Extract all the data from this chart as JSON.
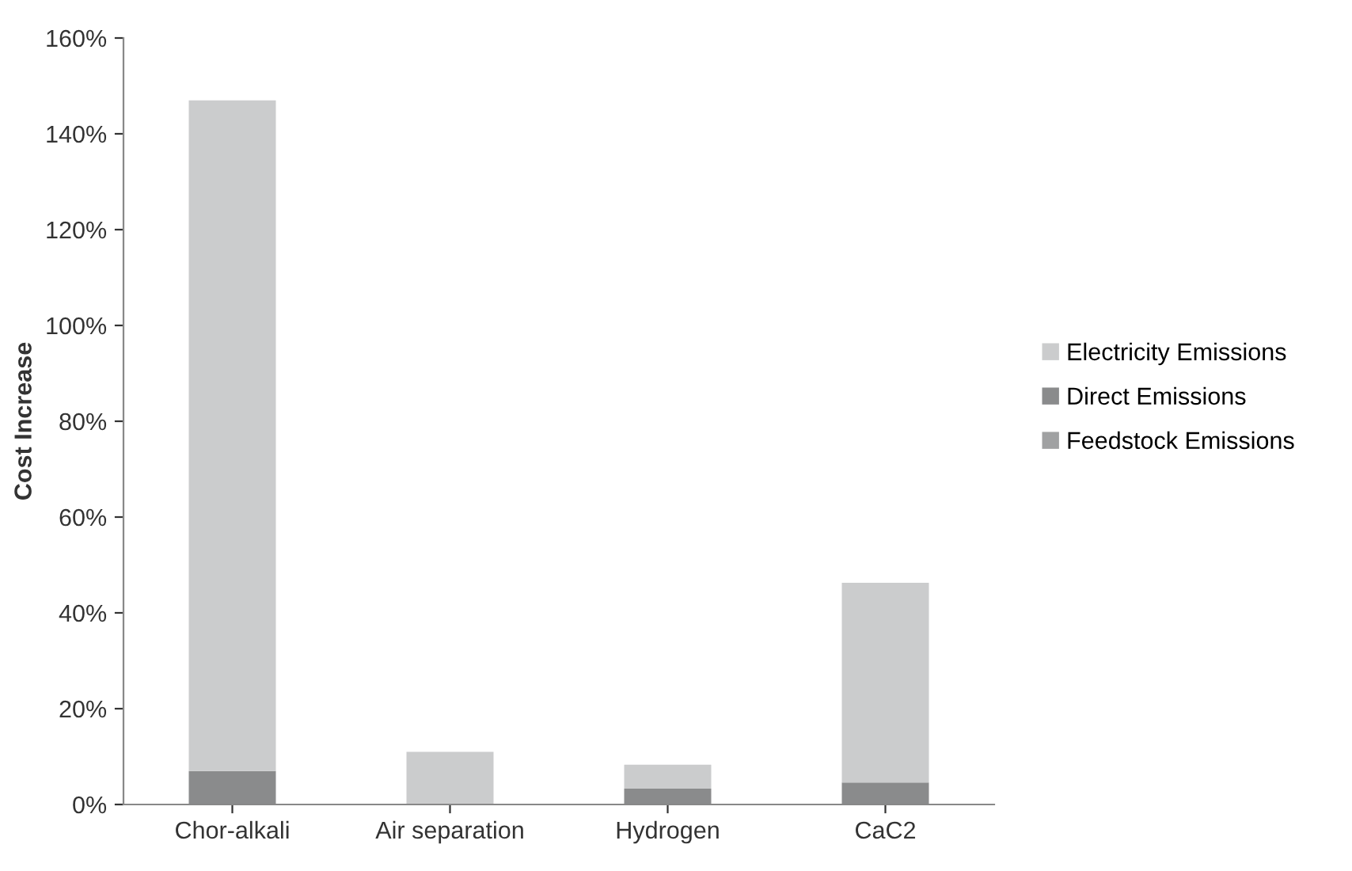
{
  "chart_data": {
    "type": "bar",
    "stacked": true,
    "ylabel": "Cost Increase",
    "categories": [
      "Chor-alkali",
      "Air separation",
      "Hydrogen",
      "CaC2"
    ],
    "series": [
      {
        "name": "Feedstock Emissions",
        "color": "#a0a1a2",
        "values": [
          0,
          0,
          0,
          0
        ]
      },
      {
        "name": "Direct Emissions",
        "color": "#8a8b8c",
        "values": [
          7,
          0,
          3.3,
          4.6
        ]
      },
      {
        "name": "Electricity Emissions",
        "color": "#cbcccd",
        "values": [
          140,
          11,
          5,
          41.7
        ]
      }
    ],
    "ylim": [
      0,
      160
    ],
    "yticks": [
      {
        "value": 0,
        "label": "0%"
      },
      {
        "value": 20,
        "label": "20%"
      },
      {
        "value": 40,
        "label": "40%"
      },
      {
        "value": 60,
        "label": "60%"
      },
      {
        "value": 80,
        "label": "80%"
      },
      {
        "value": 100,
        "label": "100%"
      },
      {
        "value": 120,
        "label": "120%"
      },
      {
        "value": 140,
        "label": "140%"
      },
      {
        "value": 160,
        "label": "160%"
      }
    ],
    "grid": false,
    "legend": "right"
  }
}
